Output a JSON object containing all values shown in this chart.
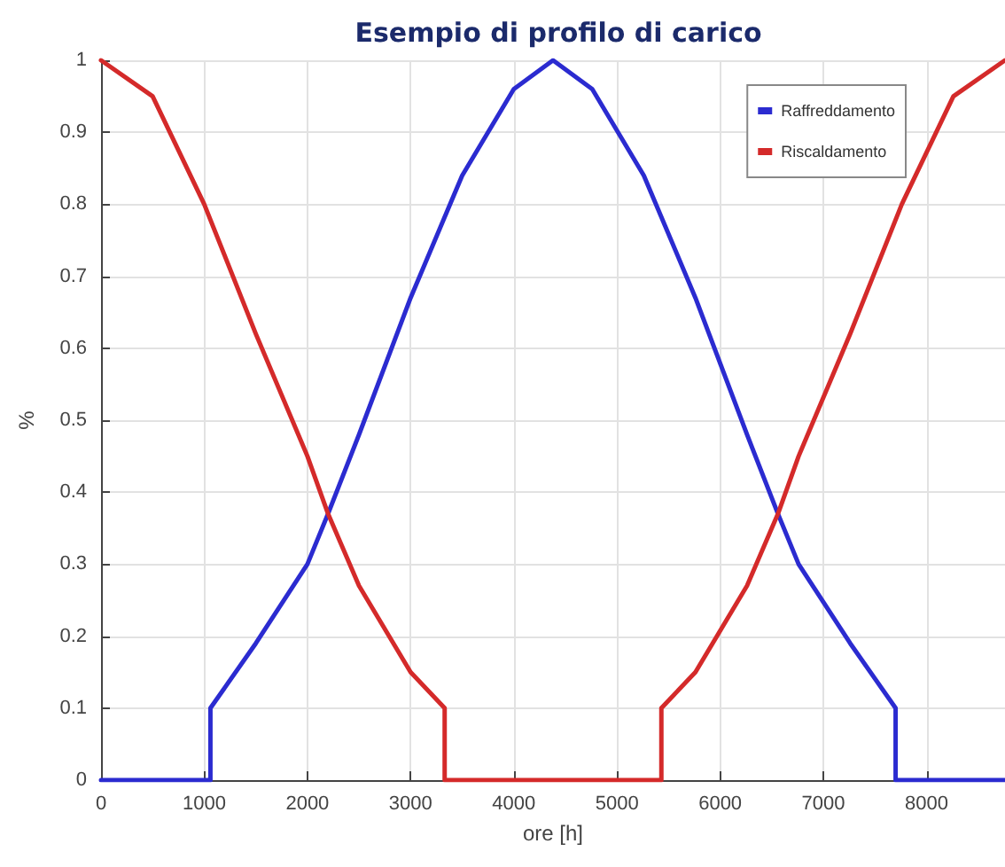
{
  "chart_data": {
    "type": "line",
    "title": "Esempio di profilo di carico",
    "xlabel": "ore [h]",
    "ylabel": "%",
    "series": [
      {
        "name": "Raffreddamento",
        "color": "#2b2bd0",
        "x": [
          0,
          1060,
          1060,
          1500,
          2000,
          2200,
          2500,
          3000,
          3500,
          4000,
          4380,
          4760,
          5260,
          5760,
          6260,
          6560,
          6760,
          7260,
          7700,
          7700,
          8760
        ],
        "values": [
          0,
          0,
          0.1,
          0.19,
          0.3,
          0.37,
          0.48,
          0.67,
          0.84,
          0.96,
          1,
          0.96,
          0.84,
          0.67,
          0.48,
          0.37,
          0.3,
          0.19,
          0.1,
          0,
          0
        ]
      },
      {
        "name": "Riscaldamento",
        "color": "#d42a2a",
        "x": [
          0,
          500,
          1000,
          1500,
          2000,
          2200,
          2500,
          3000,
          3330,
          3330,
          5430,
          5430,
          5760,
          6260,
          6560,
          6760,
          7260,
          7760,
          8260,
          8760
        ],
        "values": [
          1,
          0.95,
          0.8,
          0.62,
          0.45,
          0.37,
          0.27,
          0.15,
          0.1,
          0,
          0,
          0.1,
          0.15,
          0.27,
          0.37,
          0.45,
          0.62,
          0.8,
          0.95,
          1
        ]
      }
    ],
    "xlim": [
      0,
      8760
    ],
    "xticks": [
      0,
      1000,
      2000,
      3000,
      4000,
      5000,
      6000,
      7000,
      8000
    ],
    "ylim": [
      0,
      1
    ],
    "yticks": [
      0,
      0.1,
      0.2,
      0.3,
      0.4,
      0.5,
      0.6,
      0.7,
      0.8,
      0.9,
      1
    ],
    "grid": true,
    "legend": "top right",
    "marker": "none",
    "line_style": "solid"
  }
}
